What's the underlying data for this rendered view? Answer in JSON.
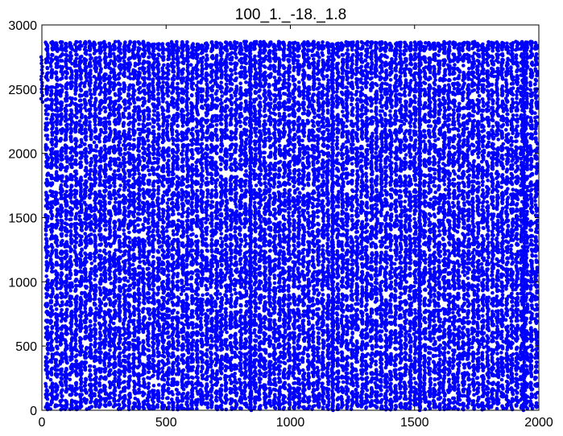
{
  "chart_data": {
    "type": "scatter",
    "title": "100_1._-18._1.8",
    "xlabel": "",
    "ylabel": "",
    "xlim": [
      0,
      2000
    ],
    "ylim": [
      0,
      3000
    ],
    "xticks": [
      "0",
      "500",
      "1000",
      "1500",
      "2000"
    ],
    "yticks": [
      "0",
      "500",
      "1000",
      "1500",
      "2000",
      "2500",
      "3000"
    ],
    "grid": false,
    "marker_color": "#0000ff",
    "series": [
      {
        "band_centers_y": [
          2850,
          2730,
          2620,
          2500,
          2380,
          2260,
          2140,
          2020,
          1910,
          1790,
          1670,
          1560,
          1440,
          1320,
          1200,
          1090,
          980,
          860,
          740,
          630,
          520,
          400,
          290,
          170,
          60
        ],
        "column_period_x": 19.5,
        "x_range": [
          20,
          1995
        ],
        "y_range": [
          0,
          2870
        ],
        "marked_columns_x": [
          [
            0,
            2400,
            2750
          ],
          [
            840,
            0,
            2870
          ],
          [
            1170,
            0,
            2870
          ],
          [
            1520,
            0,
            2870
          ],
          [
            1940,
            0,
            2870
          ]
        ]
      }
    ]
  }
}
